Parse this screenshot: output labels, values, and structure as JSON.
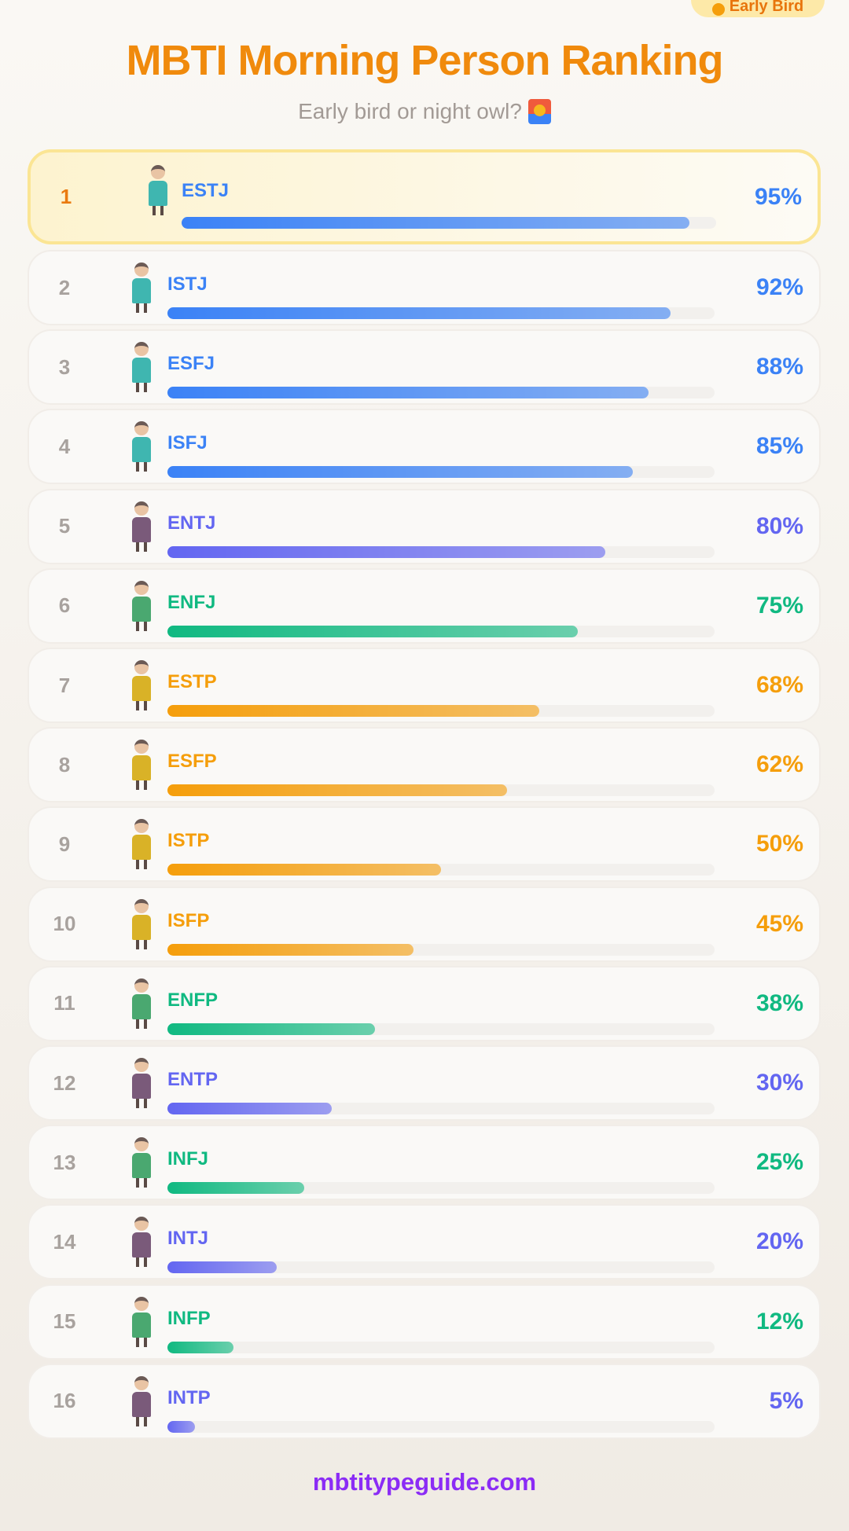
{
  "badge": {
    "label": "Early Bird",
    "icon": "sun-icon"
  },
  "title": "MBTI Morning Person Ranking",
  "subtitle": "Early bird or night owl?",
  "subtitle_icon": "sunrise-icon",
  "footer": "mbtitypeguide.com",
  "colors": {
    "SJ": "#3b82f6",
    "NT": "#6366f1",
    "NF": "#10b981",
    "SP": "#f59e0b",
    "rank": "#a8a29e",
    "rank_first": "#ea7a10"
  },
  "rankings": [
    {
      "rank": "1",
      "type": "ESTJ",
      "percent": 95,
      "label": "95%",
      "group": "SJ"
    },
    {
      "rank": "2",
      "type": "ISTJ",
      "percent": 92,
      "label": "92%",
      "group": "SJ"
    },
    {
      "rank": "3",
      "type": "ESFJ",
      "percent": 88,
      "label": "88%",
      "group": "SJ"
    },
    {
      "rank": "4",
      "type": "ISFJ",
      "percent": 85,
      "label": "85%",
      "group": "SJ"
    },
    {
      "rank": "5",
      "type": "ENTJ",
      "percent": 80,
      "label": "80%",
      "group": "NT"
    },
    {
      "rank": "6",
      "type": "ENFJ",
      "percent": 75,
      "label": "75%",
      "group": "NF"
    },
    {
      "rank": "7",
      "type": "ESTP",
      "percent": 68,
      "label": "68%",
      "group": "SP"
    },
    {
      "rank": "8",
      "type": "ESFP",
      "percent": 62,
      "label": "62%",
      "group": "SP"
    },
    {
      "rank": "9",
      "type": "ISTP",
      "percent": 50,
      "label": "50%",
      "group": "SP"
    },
    {
      "rank": "10",
      "type": "ISFP",
      "percent": 45,
      "label": "45%",
      "group": "SP"
    },
    {
      "rank": "11",
      "type": "ENFP",
      "percent": 38,
      "label": "38%",
      "group": "NF"
    },
    {
      "rank": "12",
      "type": "ENTP",
      "percent": 30,
      "label": "30%",
      "group": "NT"
    },
    {
      "rank": "13",
      "type": "INFJ",
      "percent": 25,
      "label": "25%",
      "group": "NF"
    },
    {
      "rank": "14",
      "type": "INTJ",
      "percent": 20,
      "label": "20%",
      "group": "NT"
    },
    {
      "rank": "15",
      "type": "INFP",
      "percent": 12,
      "label": "12%",
      "group": "NF"
    },
    {
      "rank": "16",
      "type": "INTP",
      "percent": 5,
      "label": "5%",
      "group": "NT"
    }
  ]
}
